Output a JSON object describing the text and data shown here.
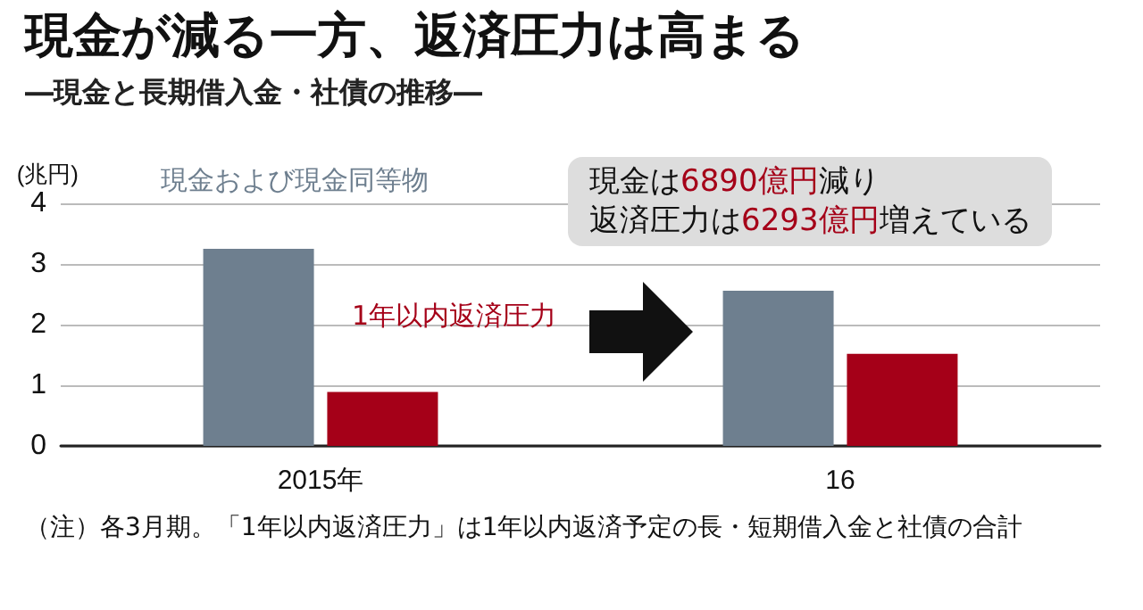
{
  "chart_data": {
    "type": "bar",
    "title": "現金が減る一方、返済圧力は高まる",
    "subtitle": "―現金と長期借入金・社債の推移―",
    "ylabel": "(兆円)",
    "categories": [
      "2015年",
      "16"
    ],
    "series": [
      {
        "name": "現金および現金同等物",
        "color": "#6e7f8f",
        "values": [
          3.25,
          2.56
        ]
      },
      {
        "name": "1年以内返済圧力",
        "color": "#a50018",
        "values": [
          0.89,
          1.52
        ]
      }
    ],
    "ylim": [
      0,
      4
    ],
    "yticks": [
      0,
      1,
      2,
      3,
      4
    ],
    "grid": "y",
    "legend": false,
    "annotations": [
      "現金は6890億円減り",
      "返済圧力は6293億円増えている",
      "（注）各3月期。「1年以内返済圧力」は1年以内返済予定の長・短期借入金と社債の合計"
    ]
  }
}
